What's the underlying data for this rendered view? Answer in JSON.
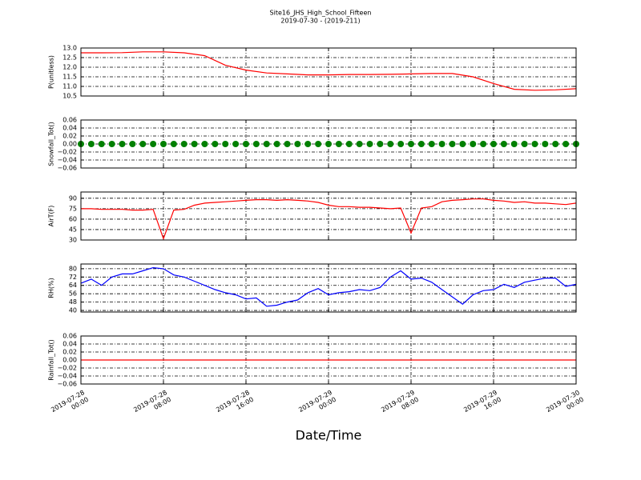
{
  "chart_data": [
    {
      "type": "line",
      "title": "Site16_JHS_High_School_Fifteen",
      "subtitle": "2019-07-30 - (2019-211)",
      "ylabel": "P(unitless)",
      "color": "#ff0000",
      "grid": true,
      "xlim": [
        "2019-07-28 00:00",
        "2019-07-30 00:00"
      ],
      "ylim": [
        10.5,
        13.0
      ],
      "yticks": [
        10.5,
        {
          "value": 11,
          "label": "11.0"
        },
        11.5,
        {
          "value": 12,
          "label": "12.0"
        },
        12.5,
        {
          "value": 13,
          "label": "13.0"
        }
      ],
      "x": [
        "2019-07-28 00:00",
        "2019-07-28 02:00",
        "2019-07-28 04:00",
        "2019-07-28 06:00",
        "2019-07-28 08:00",
        "2019-07-28 10:00",
        "2019-07-28 12:00",
        "2019-07-28 14:00",
        "2019-07-28 16:00",
        "2019-07-28 18:00",
        "2019-07-28 20:00",
        "2019-07-28 22:00",
        "2019-07-29 00:00",
        "2019-07-29 02:00",
        "2019-07-29 04:00",
        "2019-07-29 06:00",
        "2019-07-29 08:00",
        "2019-07-29 10:00",
        "2019-07-29 12:00",
        "2019-07-29 14:00",
        "2019-07-29 16:00",
        "2019-07-29 18:00",
        "2019-07-29 20:00",
        "2019-07-29 22:00",
        "2019-07-30 00:00"
      ],
      "values": [
        12.75,
        12.75,
        12.76,
        12.8,
        12.8,
        12.75,
        12.6,
        12.1,
        11.85,
        11.7,
        11.65,
        11.6,
        11.6,
        11.62,
        11.62,
        11.63,
        11.65,
        11.67,
        11.67,
        11.5,
        11.15,
        10.85,
        10.8,
        10.82,
        10.88
      ]
    },
    {
      "type": "scatter",
      "ylabel": "Snowfall_Tot()",
      "color": "#008000",
      "grid": true,
      "xlim": [
        "2019-07-28 00:00",
        "2019-07-30 00:00"
      ],
      "ylim": [
        -0.06,
        0.06
      ],
      "yticks": [
        {
          "value": -0.06,
          "label": "−0.06"
        },
        {
          "value": -0.04,
          "label": "−0.04"
        },
        {
          "value": -0.02,
          "label": "−0.02"
        },
        {
          "value": 0,
          "label": "0.00"
        },
        0.02,
        0.04,
        0.06
      ],
      "x": [
        "2019-07-28 00:00",
        "2019-07-28 01:00",
        "2019-07-28 02:00",
        "2019-07-28 03:00",
        "2019-07-28 04:00",
        "2019-07-28 05:00",
        "2019-07-28 06:00",
        "2019-07-28 07:00",
        "2019-07-28 08:00",
        "2019-07-28 09:00",
        "2019-07-28 10:00",
        "2019-07-28 11:00",
        "2019-07-28 12:00",
        "2019-07-28 13:00",
        "2019-07-28 14:00",
        "2019-07-28 15:00",
        "2019-07-28 16:00",
        "2019-07-28 17:00",
        "2019-07-28 18:00",
        "2019-07-28 19:00",
        "2019-07-28 20:00",
        "2019-07-28 21:00",
        "2019-07-28 22:00",
        "2019-07-28 23:00",
        "2019-07-29 00:00",
        "2019-07-29 01:00",
        "2019-07-29 02:00",
        "2019-07-29 03:00",
        "2019-07-29 04:00",
        "2019-07-29 05:00",
        "2019-07-29 06:00",
        "2019-07-29 07:00",
        "2019-07-29 08:00",
        "2019-07-29 09:00",
        "2019-07-29 10:00",
        "2019-07-29 11:00",
        "2019-07-29 12:00",
        "2019-07-29 13:00",
        "2019-07-29 14:00",
        "2019-07-29 15:00",
        "2019-07-29 16:00",
        "2019-07-29 17:00",
        "2019-07-29 18:00",
        "2019-07-29 19:00",
        "2019-07-29 20:00",
        "2019-07-29 21:00",
        "2019-07-29 22:00",
        "2019-07-29 23:00",
        "2019-07-30 00:00"
      ],
      "values": [
        0,
        0,
        0,
        0,
        0,
        0,
        0,
        0,
        0,
        0,
        0,
        0,
        0,
        0,
        0,
        0,
        0,
        0,
        0,
        0,
        0,
        0,
        0,
        0,
        0,
        0,
        0,
        0,
        0,
        0,
        0,
        0,
        0,
        0,
        0,
        0,
        0,
        0,
        0,
        0,
        0,
        0,
        0,
        0,
        0,
        0,
        0,
        0,
        0
      ]
    },
    {
      "type": "line",
      "ylabel": "AirT(F)",
      "color": "#ff0000",
      "grid": true,
      "xlim": [
        "2019-07-28 00:00",
        "2019-07-30 00:00"
      ],
      "ylim": [
        30,
        99
      ],
      "yticks": [
        30,
        45,
        60,
        75,
        90
      ],
      "x": [
        "2019-07-28 00:00",
        "2019-07-28 01:00",
        "2019-07-28 02:00",
        "2019-07-28 03:00",
        "2019-07-28 04:00",
        "2019-07-28 05:00",
        "2019-07-28 06:00",
        "2019-07-28 07:00",
        "2019-07-28 08:00",
        "2019-07-28 09:00",
        "2019-07-28 10:00",
        "2019-07-28 11:00",
        "2019-07-28 12:00",
        "2019-07-28 13:00",
        "2019-07-28 14:00",
        "2019-07-28 15:00",
        "2019-07-28 16:00",
        "2019-07-28 17:00",
        "2019-07-28 18:00",
        "2019-07-28 19:00",
        "2019-07-28 20:00",
        "2019-07-28 21:00",
        "2019-07-28 22:00",
        "2019-07-28 23:00",
        "2019-07-29 00:00",
        "2019-07-29 01:00",
        "2019-07-29 02:00",
        "2019-07-29 03:00",
        "2019-07-29 04:00",
        "2019-07-29 05:00",
        "2019-07-29 06:00",
        "2019-07-29 07:00",
        "2019-07-29 08:00",
        "2019-07-29 09:00",
        "2019-07-29 10:00",
        "2019-07-29 11:00",
        "2019-07-29 12:00",
        "2019-07-29 13:00",
        "2019-07-29 14:00",
        "2019-07-29 15:00",
        "2019-07-29 16:00",
        "2019-07-29 17:00",
        "2019-07-29 18:00",
        "2019-07-29 19:00",
        "2019-07-29 20:00",
        "2019-07-29 21:00",
        "2019-07-29 22:00",
        "2019-07-29 23:00",
        "2019-07-30 00:00"
      ],
      "values": [
        75,
        75,
        74,
        74,
        74,
        73,
        73,
        74,
        32,
        73,
        74,
        80,
        83,
        84,
        85,
        86,
        87,
        88,
        88,
        87,
        88,
        87,
        86,
        84,
        80,
        78,
        78,
        77,
        77,
        76,
        75,
        76,
        40,
        76,
        78,
        85,
        87,
        88,
        89,
        89,
        87,
        86,
        84,
        85,
        83,
        83,
        82,
        81,
        83
      ]
    },
    {
      "type": "line",
      "ylabel": "RH(%)",
      "color": "#0000ff",
      "grid": true,
      "xlim": [
        "2019-07-28 00:00",
        "2019-07-30 00:00"
      ],
      "ylim": [
        38.5,
        84.5
      ],
      "yticks": [
        40,
        48,
        56,
        64,
        72,
        80
      ],
      "x": [
        "2019-07-28 00:00",
        "2019-07-28 01:00",
        "2019-07-28 02:00",
        "2019-07-28 03:00",
        "2019-07-28 04:00",
        "2019-07-28 05:00",
        "2019-07-28 06:00",
        "2019-07-28 07:00",
        "2019-07-28 08:00",
        "2019-07-28 09:00",
        "2019-07-28 10:00",
        "2019-07-28 11:00",
        "2019-07-28 12:00",
        "2019-07-28 13:00",
        "2019-07-28 14:00",
        "2019-07-28 15:00",
        "2019-07-28 16:00",
        "2019-07-28 17:00",
        "2019-07-28 18:00",
        "2019-07-28 19:00",
        "2019-07-28 20:00",
        "2019-07-28 21:00",
        "2019-07-28 22:00",
        "2019-07-28 23:00",
        "2019-07-29 00:00",
        "2019-07-29 01:00",
        "2019-07-29 02:00",
        "2019-07-29 03:00",
        "2019-07-29 04:00",
        "2019-07-29 05:00",
        "2019-07-29 06:00",
        "2019-07-29 07:00",
        "2019-07-29 08:00",
        "2019-07-29 09:00",
        "2019-07-29 10:00",
        "2019-07-29 11:00",
        "2019-07-29 12:00",
        "2019-07-29 13:00",
        "2019-07-29 14:00",
        "2019-07-29 15:00",
        "2019-07-29 16:00",
        "2019-07-29 17:00",
        "2019-07-29 18:00",
        "2019-07-29 19:00",
        "2019-07-29 20:00",
        "2019-07-29 21:00",
        "2019-07-29 22:00",
        "2019-07-29 23:00",
        "2019-07-30 00:00"
      ],
      "values": [
        66,
        70,
        64,
        72,
        75,
        75,
        78,
        81,
        80,
        74,
        72,
        68,
        64,
        60,
        57,
        55,
        51,
        52,
        44,
        45,
        48,
        50,
        57,
        61,
        55,
        57,
        58,
        60,
        59,
        62,
        72,
        78,
        70,
        71,
        67,
        60,
        53,
        46,
        55,
        59,
        60,
        65,
        62,
        67,
        69,
        71,
        71,
        63,
        65
      ]
    },
    {
      "type": "line",
      "ylabel": "Rainfall_Tot()",
      "xlabel": "Date/Time",
      "color": "#ff0000",
      "grid": true,
      "xlim": [
        "2019-07-28 00:00",
        "2019-07-30 00:00"
      ],
      "ylim": [
        -0.06,
        0.06
      ],
      "yticks": [
        {
          "value": -0.06,
          "label": "−0.06"
        },
        {
          "value": -0.04,
          "label": "−0.04"
        },
        {
          "value": -0.02,
          "label": "−0.02"
        },
        {
          "value": 0,
          "label": "0.00"
        },
        0.02,
        0.04,
        0.06
      ],
      "xticks": [
        {
          "value": "2019-07-28 00:00",
          "label": "2019-07-28\n00:00"
        },
        {
          "value": "2019-07-28 08:00",
          "label": "2019-07-28\n08:00"
        },
        {
          "value": "2019-07-28 16:00",
          "label": "2019-07-28\n16:00"
        },
        {
          "value": "2019-07-29 00:00",
          "label": "2019-07-29\n00:00"
        },
        {
          "value": "2019-07-29 08:00",
          "label": "2019-07-29\n08:00"
        },
        {
          "value": "2019-07-29 16:00",
          "label": "2019-07-29\n16:00"
        },
        {
          "value": "2019-07-30 00:00",
          "label": "2019-07-30\n00:00"
        }
      ],
      "x": [
        "2019-07-28 00:00",
        "2019-07-30 00:00"
      ],
      "values": [
        0,
        0
      ]
    }
  ]
}
